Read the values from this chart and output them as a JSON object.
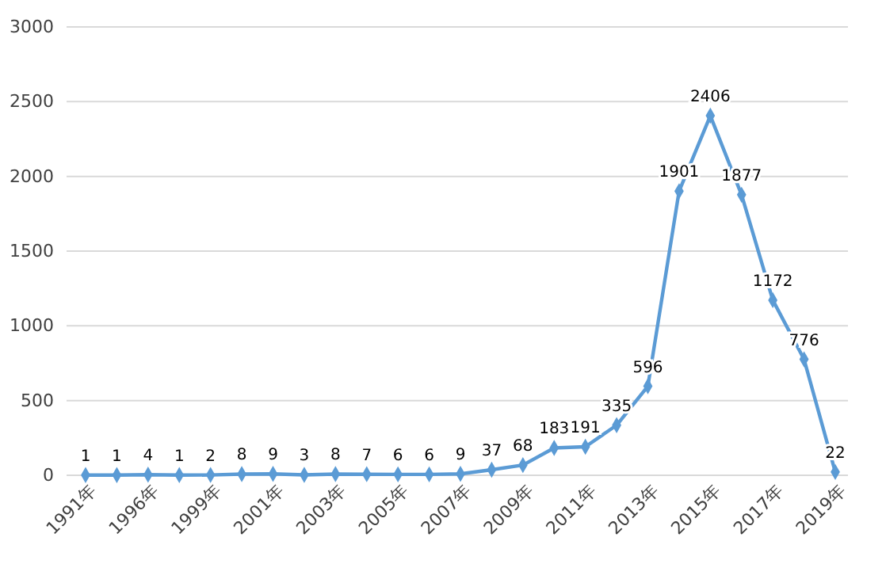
{
  "chart_data": {
    "type": "line",
    "categories": [
      "1991年",
      null,
      "1996年",
      null,
      "1999年",
      null,
      "2001年",
      null,
      "2003年",
      null,
      "2005年",
      null,
      "2007年",
      null,
      "2009年",
      null,
      "2011年",
      null,
      "2013年",
      null,
      "2015年",
      null,
      "2017年",
      null,
      "2019年"
    ],
    "series": [
      {
        "color": "#5b9bd5",
        "values": [
          1,
          1,
          4,
          1,
          2,
          8,
          9,
          3,
          8,
          7,
          6,
          6,
          9,
          37,
          68,
          183,
          191,
          335,
          596,
          1901,
          2406,
          1877,
          1172,
          776,
          22
        ]
      }
    ],
    "ylim": [
      0,
      3000
    ],
    "yticks": [
      0,
      500,
      1000,
      1500,
      2000,
      2500,
      3000
    ],
    "grid": "y",
    "marker": "diamond",
    "line_style": "solid",
    "data_labels": true
  }
}
